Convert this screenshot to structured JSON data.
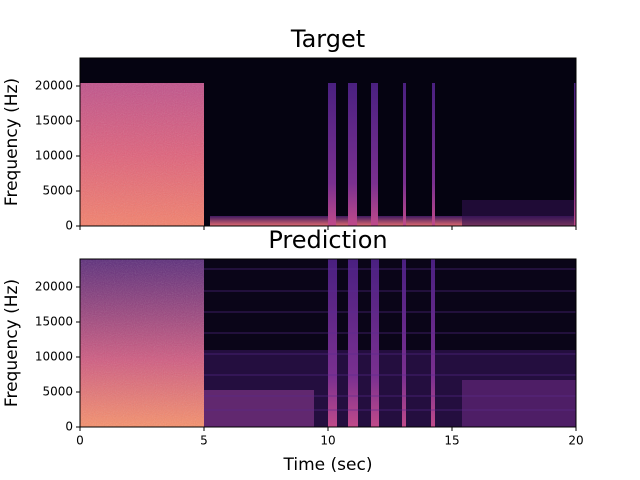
{
  "chart_data": [
    {
      "type": "spectrogram",
      "title": "Target",
      "ylabel": "Frequency (Hz)",
      "xlim": [
        0,
        20
      ],
      "xticks": [
        0,
        5,
        10,
        15,
        20
      ],
      "ylim": [
        0,
        24000
      ],
      "yticks": [
        0,
        5000,
        10000,
        15000,
        20000
      ]
    },
    {
      "type": "spectrogram",
      "title": "Prediction",
      "ylabel": "Frequency (Hz)",
      "xlabel": "Time (sec)",
      "xlim": [
        0,
        20
      ],
      "xticks": [
        0,
        5,
        10,
        15,
        20
      ],
      "ylim": [
        0,
        24000
      ],
      "yticks": [
        0,
        5000,
        10000,
        15000,
        20000
      ]
    }
  ]
}
